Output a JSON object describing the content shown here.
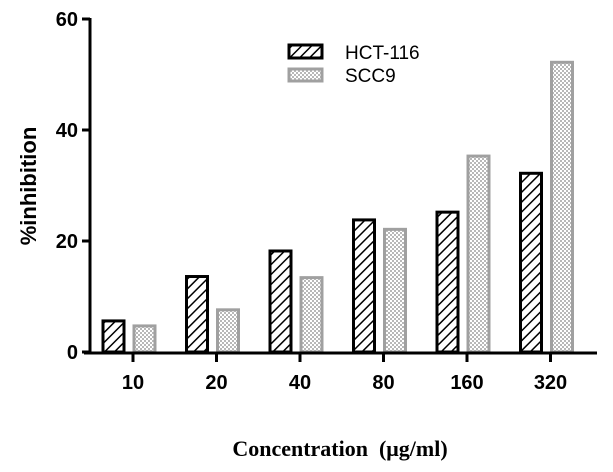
{
  "chart_data": {
    "type": "bar",
    "title": "",
    "xlabel": "Concentration  (μg/ml)",
    "ylabel": "%inhibition",
    "categories": [
      "10",
      "20",
      "40",
      "80",
      "160",
      "320"
    ],
    "series": [
      {
        "name": "HCT-116",
        "values": [
          5.6,
          13.6,
          18.2,
          23.8,
          25.2,
          32.2
        ],
        "color": "#000000",
        "pattern": "diagonal-hatch"
      },
      {
        "name": "SCC9",
        "values": [
          4.7,
          7.6,
          13.4,
          22.1,
          35.3,
          52.2
        ],
        "color": "#a0a0a0",
        "pattern": "checker"
      }
    ],
    "ylim": [
      0,
      60
    ],
    "yticks": [
      0,
      20,
      40,
      60
    ],
    "grid": false,
    "legend_position": "top-center"
  }
}
